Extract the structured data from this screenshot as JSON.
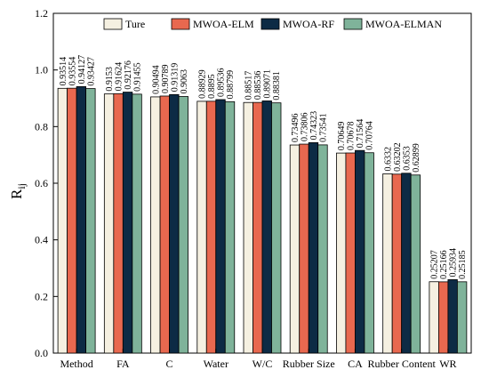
{
  "chart_data": {
    "type": "bar",
    "title": "",
    "xlabel": "",
    "ylabel": "R",
    "ylabel_sub": "ij",
    "ylim": [
      0.0,
      1.2
    ],
    "yticks": [
      "0.0",
      "0.2",
      "0.4",
      "0.6",
      "0.8",
      "1.0",
      "1.2"
    ],
    "ytick_values": [
      0.0,
      0.2,
      0.4,
      0.6,
      0.8,
      1.0,
      1.2
    ],
    "grid": false,
    "legend_position": "top",
    "categories": [
      "Method",
      "FA",
      "C",
      "Water",
      "W/C",
      "Rubber Size",
      "CA",
      "Rubber Content",
      "WR"
    ],
    "series": [
      {
        "name": "Ture",
        "color": "#f5f0e1",
        "values": [
          0.93514,
          0.9153,
          0.90494,
          0.88929,
          0.88517,
          0.73496,
          0.70649,
          0.6332,
          0.25207
        ],
        "labels": [
          "0.93514",
          "0.9153",
          "0.90494",
          "0.88929",
          "0.88517",
          "0.73496",
          "0.70649",
          "0.6332",
          "0.25207"
        ]
      },
      {
        "name": "MWOA-ELM",
        "color": "#e8684f",
        "values": [
          0.93554,
          0.91624,
          0.90789,
          0.8895,
          0.88536,
          0.73806,
          0.70678,
          0.63202,
          0.25166
        ],
        "labels": [
          "0.93554",
          "0.91624",
          "0.90789",
          "0.8895",
          "0.88536",
          "0.73806",
          "0.70678",
          "0.63202",
          "0.25166"
        ]
      },
      {
        "name": "MWOA-RF",
        "color": "#0d2b45",
        "values": [
          0.94127,
          0.92176,
          0.91319,
          0.89536,
          0.89071,
          0.74323,
          0.71564,
          0.6353,
          0.25934
        ],
        "labels": [
          "0.94127",
          "0.92176",
          "0.91319",
          "0.89536",
          "0.89071",
          "0.74323",
          "0.71564",
          "0.6353",
          "0.25934"
        ]
      },
      {
        "name": "MWOA-ELMAN",
        "color": "#7fb39a",
        "values": [
          0.93427,
          0.91455,
          0.9063,
          0.88799,
          0.88381,
          0.73541,
          0.70764,
          0.62899,
          0.25185
        ],
        "labels": [
          "0.93427",
          "0.91455",
          "0.9063",
          "0.88799",
          "0.88381",
          "0.73541",
          "0.70764",
          "0.62899",
          "0.25185"
        ]
      }
    ]
  }
}
